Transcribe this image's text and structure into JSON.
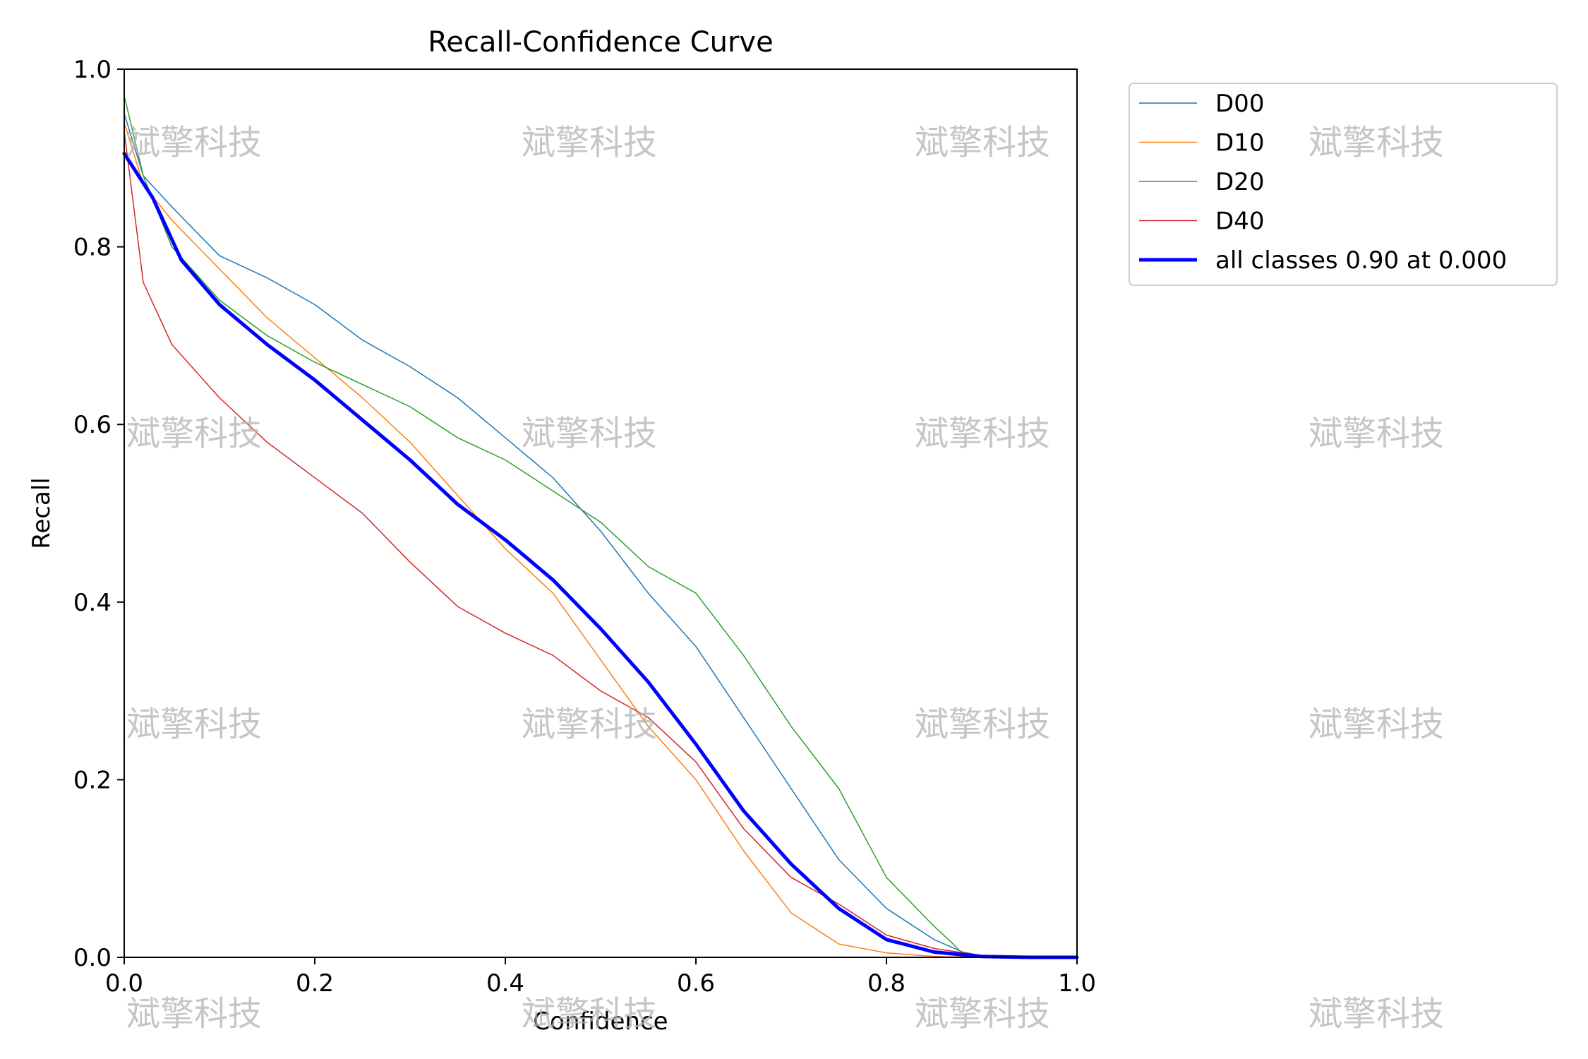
{
  "chart_data": {
    "type": "line",
    "title": "Recall-Confidence Curve",
    "xlabel": "Confidence",
    "ylabel": "Recall",
    "xlim": [
      0.0,
      1.0
    ],
    "ylim": [
      0.0,
      1.0
    ],
    "xticks": [
      "0.0",
      "0.2",
      "0.4",
      "0.6",
      "0.8",
      "1.0"
    ],
    "yticks": [
      "0.0",
      "0.2",
      "0.4",
      "0.6",
      "0.8",
      "1.0"
    ],
    "grid": false,
    "legend_position": "outside-top-right",
    "series": [
      {
        "name": "D00",
        "color": "#1f77b4",
        "width": 1.5,
        "x": [
          0.0,
          0.02,
          0.05,
          0.1,
          0.15,
          0.2,
          0.25,
          0.3,
          0.35,
          0.4,
          0.45,
          0.5,
          0.55,
          0.6,
          0.65,
          0.7,
          0.75,
          0.8,
          0.85,
          0.88,
          0.9,
          1.0
        ],
        "y": [
          0.95,
          0.88,
          0.845,
          0.79,
          0.765,
          0.735,
          0.695,
          0.665,
          0.63,
          0.585,
          0.54,
          0.48,
          0.41,
          0.35,
          0.27,
          0.19,
          0.11,
          0.055,
          0.02,
          0.006,
          0.002,
          0.0
        ]
      },
      {
        "name": "D10",
        "color": "#ff7f0e",
        "width": 1.5,
        "x": [
          0.0,
          0.02,
          0.05,
          0.1,
          0.15,
          0.2,
          0.25,
          0.3,
          0.35,
          0.4,
          0.45,
          0.5,
          0.55,
          0.6,
          0.65,
          0.7,
          0.75,
          0.8,
          0.85,
          0.9,
          1.0
        ],
        "y": [
          0.94,
          0.87,
          0.83,
          0.775,
          0.72,
          0.675,
          0.63,
          0.58,
          0.52,
          0.46,
          0.41,
          0.335,
          0.26,
          0.2,
          0.12,
          0.05,
          0.015,
          0.005,
          0.001,
          0.0,
          0.0
        ]
      },
      {
        "name": "D20",
        "color": "#2ca02c",
        "width": 1.5,
        "x": [
          0.0,
          0.02,
          0.05,
          0.1,
          0.15,
          0.2,
          0.25,
          0.3,
          0.35,
          0.4,
          0.45,
          0.5,
          0.55,
          0.6,
          0.65,
          0.7,
          0.75,
          0.8,
          0.85,
          0.87,
          0.88,
          0.9,
          1.0
        ],
        "y": [
          0.97,
          0.88,
          0.8,
          0.74,
          0.7,
          0.67,
          0.645,
          0.62,
          0.585,
          0.56,
          0.525,
          0.49,
          0.44,
          0.41,
          0.34,
          0.26,
          0.19,
          0.09,
          0.035,
          0.015,
          0.004,
          0.001,
          0.0
        ]
      },
      {
        "name": "D40",
        "color": "#d62728",
        "width": 1.5,
        "x": [
          0.0,
          0.02,
          0.05,
          0.1,
          0.15,
          0.2,
          0.25,
          0.3,
          0.35,
          0.4,
          0.45,
          0.5,
          0.55,
          0.6,
          0.65,
          0.7,
          0.75,
          0.8,
          0.85,
          0.9,
          1.0
        ],
        "y": [
          0.93,
          0.76,
          0.69,
          0.63,
          0.58,
          0.54,
          0.5,
          0.445,
          0.395,
          0.365,
          0.34,
          0.3,
          0.27,
          0.22,
          0.145,
          0.09,
          0.06,
          0.025,
          0.01,
          0.002,
          0.0
        ]
      },
      {
        "name": "all classes 0.90 at 0.000",
        "color": "#0000ff",
        "width": 5,
        "x": [
          0.0,
          0.03,
          0.06,
          0.1,
          0.15,
          0.2,
          0.25,
          0.3,
          0.35,
          0.4,
          0.45,
          0.5,
          0.55,
          0.6,
          0.65,
          0.7,
          0.75,
          0.8,
          0.85,
          0.9,
          0.95,
          1.0
        ],
        "y": [
          0.905,
          0.855,
          0.785,
          0.735,
          0.69,
          0.65,
          0.605,
          0.56,
          0.51,
          0.47,
          0.425,
          0.37,
          0.31,
          0.24,
          0.165,
          0.105,
          0.055,
          0.02,
          0.006,
          0.001,
          0.0,
          0.0
        ]
      }
    ]
  },
  "watermark": {
    "text": "斌擎科技"
  }
}
